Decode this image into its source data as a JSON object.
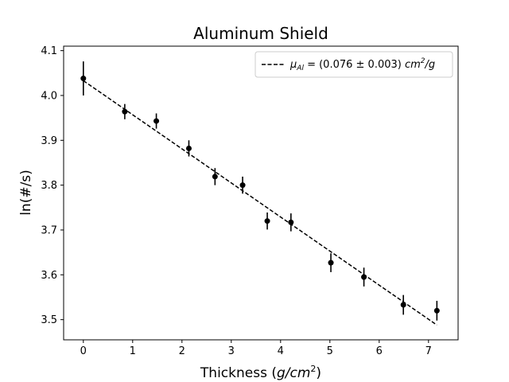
{
  "chart_data": {
    "type": "scatter",
    "title": "Aluminum Shield",
    "xlabel_main": "Thickness (",
    "xlabel_unit": "g/cm",
    "xlabel_sup": "2",
    "xlabel_close": ")",
    "ylabel": "ln(#/s)",
    "xlim": [
      -0.4,
      7.6
    ],
    "ylim": [
      3.455,
      4.11
    ],
    "xticks": [
      0,
      1,
      2,
      3,
      4,
      5,
      6,
      7
    ],
    "yticks": [
      3.5,
      3.6,
      3.7,
      3.8,
      3.9,
      4.0,
      4.1
    ],
    "grid": false,
    "legend_position": "top-right",
    "legend": {
      "mu": "μ",
      "sub": "Al",
      "value": " = (0.076 ± 0.003) ",
      "unit": "cm",
      "sup": "2",
      "tail": "/g"
    },
    "data_series": {
      "x": [
        0.0,
        0.84,
        1.48,
        2.14,
        2.67,
        3.23,
        3.73,
        4.21,
        5.02,
        5.69,
        6.49,
        7.17
      ],
      "y": [
        4.038,
        3.964,
        3.943,
        3.882,
        3.819,
        3.8,
        3.72,
        3.717,
        3.627,
        3.595,
        3.533,
        3.52
      ],
      "yerr": [
        0.038,
        0.017,
        0.017,
        0.018,
        0.019,
        0.019,
        0.019,
        0.02,
        0.021,
        0.021,
        0.022,
        0.022
      ],
      "color": "#000000"
    },
    "fit_line": {
      "x": [
        0.0,
        7.17
      ],
      "y": [
        4.033,
        3.488
      ],
      "style": "dashed",
      "color": "#000000"
    }
  }
}
